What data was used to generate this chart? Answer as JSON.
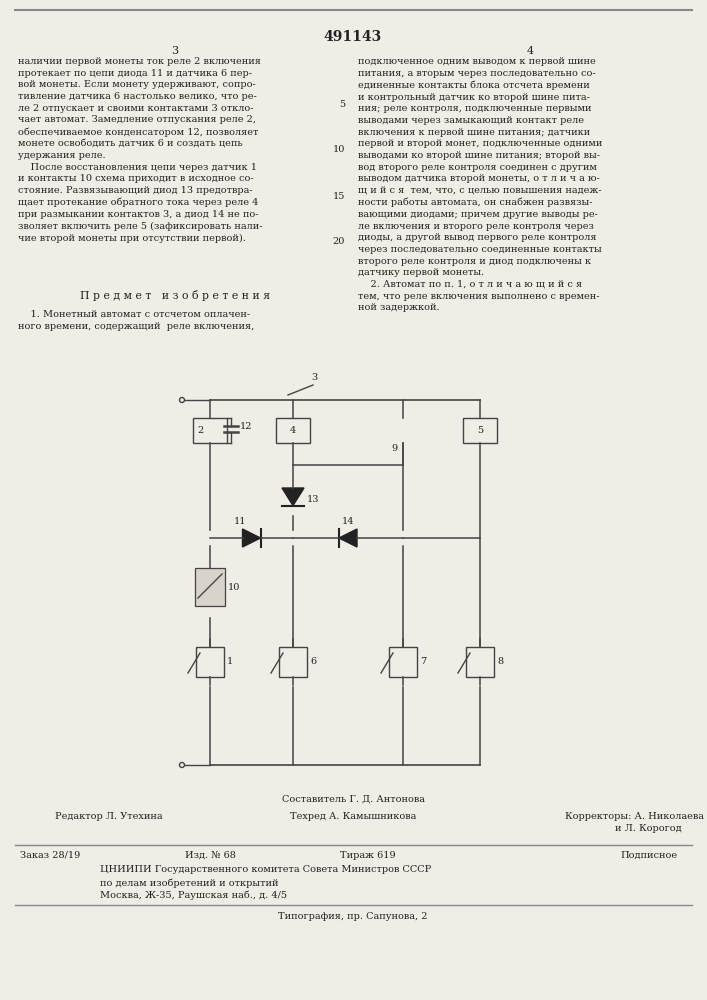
{
  "patent_number": "491143",
  "col3_header": "3",
  "col4_header": "4",
  "col3_text": "наличии первой монеты ток реле 2 включения\nпротекает по цепи диода 11 и датчика 6 пер-\nвой монеты. Если монету удерживают, сопро-\nтивление датчика 6 настолько велико, что ре-\nле 2 отпускает и своими контактами 3 откло-\nчает автомат. Замедление отпускания реле 2,\nобеспечиваемое конденсатором 12, позволяет\nмонете освободить датчик 6 и создать цепь\nудержания реле.\n    После восстановления цепи через датчик 1\nи контакты 10 схема приходит в исходное со-\nстояние. Развязывающий диод 13 предотвра-\nщает протекание обратного тока через реле 4\nпри размыкании контактов 3, а диод 14 не по-\nзволяет включить реле 5 (зафиксировать нали-\nчие второй монеты при отсутствии первой).",
  "col4_text": "подключенное одним выводом к первой шине\nпитания, а вторым через последовательно со-\nединенные контакты блока отсчета времени\nи контрольный датчик ко второй шине пита-\nния; реле контроля, подключенные первыми\nвыводами через замыкающий контакт реле\nвключения к первой шине питания; датчики\nпервой и второй монет, подключенные одними\nвыводами ко второй шине питания; второй вы-\nвод второго реле контроля соединен с другим\nвыводом датчика второй монеты, о т л и ч а ю-\nщ и й с я  тем, что, с целью повышения надеж-\nности работы автомата, он снабжен развязы-\nвающими диодами; причем другие выводы ре-\nле включения и второго реле контроля через\nдиоды, а другой вывод первого реле контроля\nчерез последовательно соединенные контакты\nвторого реле контроля и диод подключены к\nдатчику первой монеты.\n    2. Автомат по п. 1, о т л и ч а ю щ и й с я\nтем, что реле включения выполнено с времен-\nной задержкой.",
  "line5_num": "5",
  "line10_num": "10",
  "line15_num": "15",
  "line20_num": "20",
  "predmet_text": "П р е д м е т   и з о б р е т е н и я",
  "predmet_body": "    1. Монетный автомат с отсчетом оплачен-\nного времени, содержащий  реле включения,",
  "bg_color": "#f0ede6",
  "text_color": "#222222",
  "line_color": "#444444",
  "bottom": {
    "compiler": "Составитель Г. Д. Антонова",
    "editor": "Редактор Л. Утехина",
    "tech": "Техред А. Камышникова",
    "corr": "Корректоры: А. Николаева\n                и Л. Корогод",
    "order": "Заказ 28/19",
    "izd": "Изд. № 68",
    "tirazh": "Тираж 619",
    "podp": "Подписное",
    "tsniip1": "ЦНИИПИ Государственного комитета Совета Министров СССР",
    "tsniip2": "по делам изобретений и открытий",
    "tsniip3": "Москва, Ж-35, Раушская наб., д. 4/5",
    "tipo": "Типография, пр. Сапунова, 2"
  }
}
